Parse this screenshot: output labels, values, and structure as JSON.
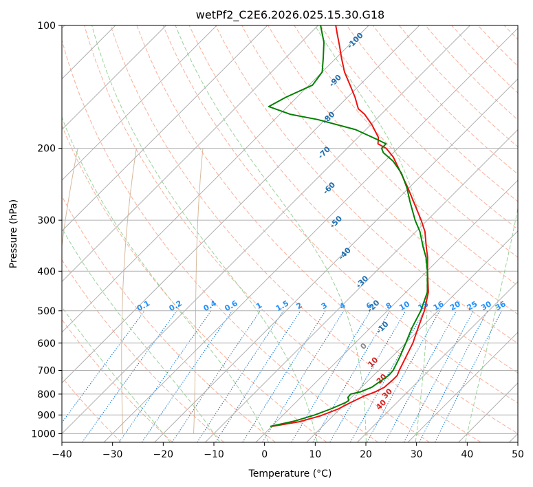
{
  "chart_data": {
    "type": "line",
    "subtype": "skew-t log-p",
    "title": "wetPf2_C2E6.2026.025.15.30.G18",
    "xlabel": "Temperature (°C)",
    "ylabel": "Pressure (hPa)",
    "xlim": [
      -40,
      50
    ],
    "ylim_hpa": [
      1050,
      100
    ],
    "x_ticks": [
      "−40",
      "−30",
      "−20",
      "−10",
      "0",
      "10",
      "20",
      "30",
      "40",
      "50"
    ],
    "x_tick_values": [
      -40,
      -30,
      -20,
      -10,
      0,
      10,
      20,
      30,
      40,
      50
    ],
    "y_ticks": [
      "100",
      "200",
      "300",
      "400",
      "500",
      "600",
      "700",
      "800",
      "900",
      "1000"
    ],
    "y_tick_values": [
      100,
      200,
      300,
      400,
      500,
      600,
      700,
      800,
      900,
      1000
    ],
    "skew_ref_p": 1000,
    "isotherm_c": [
      -140,
      -130,
      -120,
      -110,
      -100,
      -90,
      -80,
      -70,
      -60,
      -50,
      -40,
      -30,
      -20,
      -10,
      0,
      10,
      20,
      30,
      40,
      50
    ],
    "dry_adiabat_c_at_1000": [
      -30,
      -20,
      -10,
      0,
      10,
      20,
      30,
      40,
      50,
      60,
      70,
      80,
      90,
      100,
      110,
      120,
      130,
      140,
      150,
      160,
      170,
      180,
      190,
      200,
      210,
      220,
      230
    ],
    "moist_adiabat_c_at_1000": [
      -20,
      -10,
      0,
      10,
      20,
      30,
      40
    ],
    "mixing_ratio_gkg": [
      0.1,
      0.2,
      0.4,
      0.6,
      1,
      1.5,
      2,
      3,
      4,
      6,
      8,
      10,
      13,
      16,
      20,
      25,
      30,
      36
    ],
    "mixing_ratio_labels": [
      "0.1",
      "0.2",
      "0.4",
      "0.6",
      "1",
      "1.5",
      "2",
      "3",
      "4",
      "6",
      "8",
      "10",
      "13",
      "16",
      "20",
      "25",
      "30",
      "36"
    ],
    "dry_adiabat_labels": [
      {
        "text": "-100",
        "t": -59,
        "p": 110
      },
      {
        "text": "-90",
        "t": -55,
        "p": 138
      },
      {
        "text": "-80",
        "t": -49,
        "p": 170
      },
      {
        "text": "-70",
        "t": -43,
        "p": 207
      },
      {
        "text": "-60",
        "t": -35,
        "p": 253
      },
      {
        "text": "-50",
        "t": -27,
        "p": 306
      },
      {
        "text": "-40",
        "t": -19,
        "p": 366
      },
      {
        "text": "-30",
        "t": -10,
        "p": 429
      },
      {
        "text": "-20",
        "t": -3,
        "p": 492
      },
      {
        "text": "-10",
        "t": 3,
        "p": 555
      }
    ],
    "moist_adiabat_labels": [
      {
        "text": "0",
        "t": 3,
        "p": 617
      },
      {
        "text": "10",
        "t": 8,
        "p": 675
      },
      {
        "text": "20",
        "t": 13,
        "p": 742
      },
      {
        "text": "30",
        "t": 17,
        "p": 806
      },
      {
        "text": "40",
        "t": 18,
        "p": 858
      }
    ],
    "series": [
      {
        "name": "temperature",
        "color": "#ee1111",
        "points": [
          {
            "p": 960,
            "t": 0
          },
          {
            "p": 935,
            "t": 4.5
          },
          {
            "p": 905,
            "t": 7.5
          },
          {
            "p": 870,
            "t": 9.7
          },
          {
            "p": 840,
            "t": 10.8
          },
          {
            "p": 810,
            "t": 12.2
          },
          {
            "p": 790,
            "t": 13.6
          },
          {
            "p": 770,
            "t": 14.5
          },
          {
            "p": 740,
            "t": 14.7
          },
          {
            "p": 720,
            "t": 14.7
          },
          {
            "p": 700,
            "t": 14.1
          },
          {
            "p": 650,
            "t": 12.8
          },
          {
            "p": 600,
            "t": 11.4
          },
          {
            "p": 550,
            "t": 9.4
          },
          {
            "p": 500,
            "t": 7.3
          },
          {
            "p": 450,
            "t": 4.4
          },
          {
            "p": 400,
            "t": 0.1
          },
          {
            "p": 370,
            "t": -2.6
          },
          {
            "p": 350,
            "t": -4.8
          },
          {
            "p": 320,
            "t": -8.2
          },
          {
            "p": 300,
            "t": -11.2
          },
          {
            "p": 270,
            "t": -16.4
          },
          {
            "p": 250,
            "t": -20.2
          },
          {
            "p": 230,
            "t": -24.5
          },
          {
            "p": 210,
            "t": -29.2
          },
          {
            "p": 200,
            "t": -32.3
          },
          {
            "p": 195,
            "t": -34.8
          },
          {
            "p": 188,
            "t": -36.0
          },
          {
            "p": 175,
            "t": -39.8
          },
          {
            "p": 165,
            "t": -43.3
          },
          {
            "p": 160,
            "t": -45.6
          },
          {
            "p": 150,
            "t": -48.5
          },
          {
            "p": 140,
            "t": -51.9
          },
          {
            "p": 130,
            "t": -55.6
          },
          {
            "p": 120,
            "t": -59.0
          },
          {
            "p": 112,
            "t": -61.8
          },
          {
            "p": 105,
            "t": -64.5
          },
          {
            "p": 100,
            "t": -66.5
          }
        ]
      },
      {
        "name": "dewpoint",
        "color": "#008000",
        "points": [
          {
            "p": 960,
            "t": -0.3
          },
          {
            "p": 930,
            "t": 3.6
          },
          {
            "p": 900,
            "t": 6.2
          },
          {
            "p": 870,
            "t": 8.2
          },
          {
            "p": 840,
            "t": 9.8
          },
          {
            "p": 830,
            "t": 10.1
          },
          {
            "p": 815,
            "t": 9.3
          },
          {
            "p": 800,
            "t": 9.2
          },
          {
            "p": 790,
            "t": 10.7
          },
          {
            "p": 770,
            "t": 12.0
          },
          {
            "p": 740,
            "t": 12.6
          },
          {
            "p": 720,
            "t": 13.0
          },
          {
            "p": 700,
            "t": 12.9
          },
          {
            "p": 650,
            "t": 11.6
          },
          {
            "p": 600,
            "t": 10.0
          },
          {
            "p": 550,
            "t": 8.2
          },
          {
            "p": 500,
            "t": 6.6
          },
          {
            "p": 450,
            "t": 4.2
          },
          {
            "p": 400,
            "t": 0.1
          },
          {
            "p": 370,
            "t": -2.9
          },
          {
            "p": 350,
            "t": -5.4
          },
          {
            "p": 320,
            "t": -9.2
          },
          {
            "p": 300,
            "t": -12.4
          },
          {
            "p": 270,
            "t": -17.1
          },
          {
            "p": 250,
            "t": -20.4
          },
          {
            "p": 230,
            "t": -24.4
          },
          {
            "p": 215,
            "t": -28.4
          },
          {
            "p": 205,
            "t": -32.0
          },
          {
            "p": 200,
            "t": -33.2
          },
          {
            "p": 195,
            "t": -33.2
          },
          {
            "p": 190,
            "t": -36.0
          },
          {
            "p": 180,
            "t": -42.0
          },
          {
            "p": 170,
            "t": -51.5
          },
          {
            "p": 165,
            "t": -58.0
          },
          {
            "p": 158,
            "t": -63.7
          },
          {
            "p": 150,
            "t": -62.2
          },
          {
            "p": 140,
            "t": -59.3
          },
          {
            "p": 130,
            "t": -60.0
          },
          {
            "p": 120,
            "t": -62.6
          },
          {
            "p": 110,
            "t": -65.5
          },
          {
            "p": 100,
            "t": -69.5
          }
        ]
      }
    ],
    "grid": true
  },
  "colors": {
    "grid": "#b0b0b0",
    "dry_adiabat": "#f9a68e",
    "moist_adiabat": "#99d199",
    "mixing_ratio": "#1f7fd6",
    "mixing_ratio_label": "#1e90ff",
    "dry_adiabat_label": "#1f6fb0",
    "moist_adiabat_label": "#d62020",
    "zero_label": "#888888",
    "brown": "#c8a27a"
  }
}
